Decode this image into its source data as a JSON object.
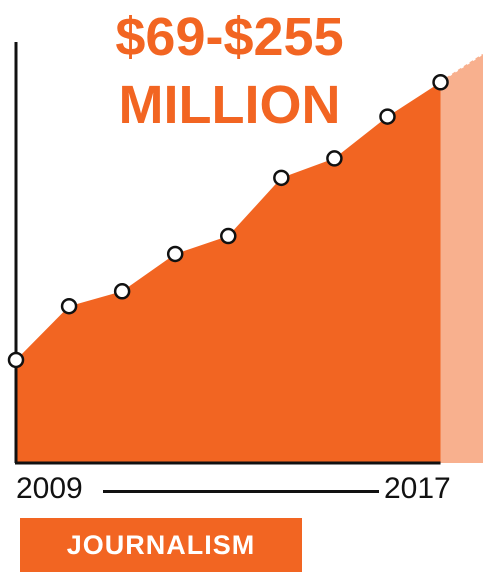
{
  "title": [
    "$69-$255",
    "MILLION"
  ],
  "x_start_label": "2009",
  "x_end_label": "2017",
  "category_badge": "JOURNALISM",
  "colors": {
    "accent": "#f26522",
    "projection": "#f8b08e",
    "axis": "#111111"
  },
  "chart_data": {
    "type": "area",
    "title": "$69-$255 MILLION",
    "x": [
      2009,
      2010,
      2011,
      2012,
      2013,
      2014,
      2015,
      2016,
      2017
    ],
    "values": [
      69,
      105,
      115,
      140,
      152,
      191,
      204,
      232,
      255
    ],
    "y_range": [
      69,
      255
    ],
    "xlim": [
      2009,
      2017.8
    ],
    "ylim": [
      0,
      290
    ],
    "x_tick_labels": [
      "2009",
      "2017"
    ],
    "projection_after": 2017,
    "grid": false,
    "legend": false
  }
}
